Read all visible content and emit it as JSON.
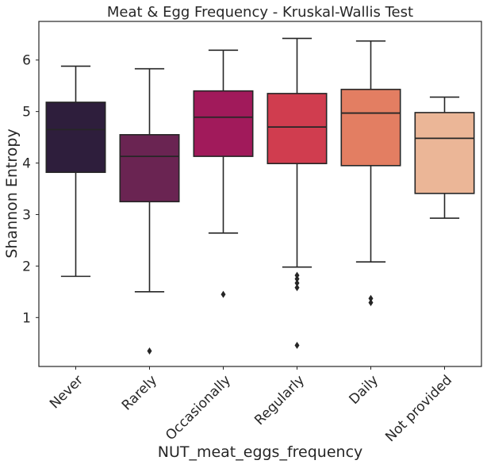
{
  "chart_data": {
    "type": "box",
    "title": "Meat & Egg Frequency - Kruskal-Wallis Test",
    "xlabel": "NUT_meat_eggs_frequency",
    "ylabel": "Shannon Entropy",
    "ylim": [
      0.05,
      6.75
    ],
    "yticks": [
      1,
      2,
      3,
      4,
      5,
      6
    ],
    "grid": false,
    "categories": [
      "Never",
      "Rarely",
      "Occasionally",
      "Regularly",
      "Daily",
      "Not provided"
    ],
    "series": [
      {
        "category": "Never",
        "whisker_low": 1.8,
        "q1": 3.82,
        "median": 4.65,
        "q3": 5.18,
        "whisker_high": 5.88,
        "outliers": [],
        "color": "#2e1e3c"
      },
      {
        "category": "Rarely",
        "whisker_low": 1.5,
        "q1": 3.25,
        "median": 4.13,
        "q3": 4.55,
        "whisker_high": 5.83,
        "outliers": [
          0.35
        ],
        "color": "#6a2452"
      },
      {
        "category": "Occasionally",
        "whisker_low": 2.64,
        "q1": 4.13,
        "median": 4.89,
        "q3": 5.4,
        "whisker_high": 6.19,
        "outliers": [
          1.45
        ],
        "color": "#a11a5b"
      },
      {
        "category": "Regularly",
        "whisker_low": 1.98,
        "q1": 3.99,
        "median": 4.7,
        "q3": 5.35,
        "whisker_high": 6.42,
        "outliers": [
          1.82,
          1.75,
          1.67,
          1.58,
          0.46
        ],
        "color": "#d03d4f"
      },
      {
        "category": "Daily",
        "whisker_low": 2.08,
        "q1": 3.95,
        "median": 4.97,
        "q3": 5.43,
        "whisker_high": 6.37,
        "outliers": [
          1.37,
          1.29
        ],
        "color": "#e37e62"
      },
      {
        "category": "Not provided",
        "whisker_low": 2.93,
        "q1": 3.41,
        "median": 4.48,
        "q3": 4.98,
        "whisker_high": 5.28,
        "outliers": [],
        "color": "#ebb697"
      }
    ]
  }
}
